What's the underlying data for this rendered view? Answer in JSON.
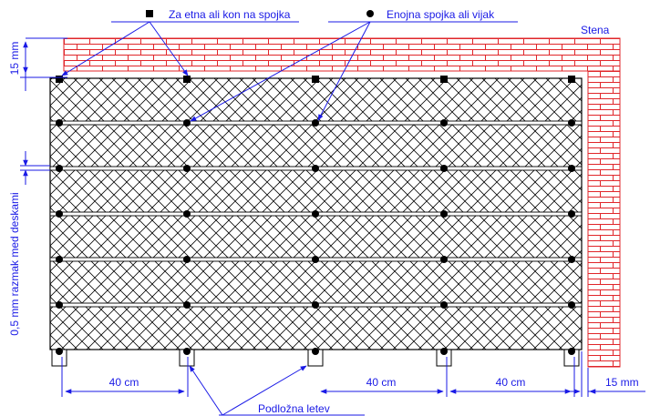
{
  "legend": {
    "start_end_joint": "Za etna ali kon na spojka",
    "single_joint": "Enojna spojka ali vijak"
  },
  "labels": {
    "wall": "Stena",
    "gap_vertical": "0,5 mm razmak med deskami",
    "batten": "Podložna letev",
    "top_gap": "15 mm",
    "right_gap": "15 mm",
    "spacing_1": "40 cm",
    "spacing_2": "40 cm",
    "spacing_3": "40 cm"
  },
  "colors": {
    "brick": "#e0262a",
    "annotation": "#1a1ae6",
    "ink": "#000000"
  },
  "icons": {
    "start_end_joint": "square-marker-icon",
    "single_joint": "round-marker-icon"
  }
}
